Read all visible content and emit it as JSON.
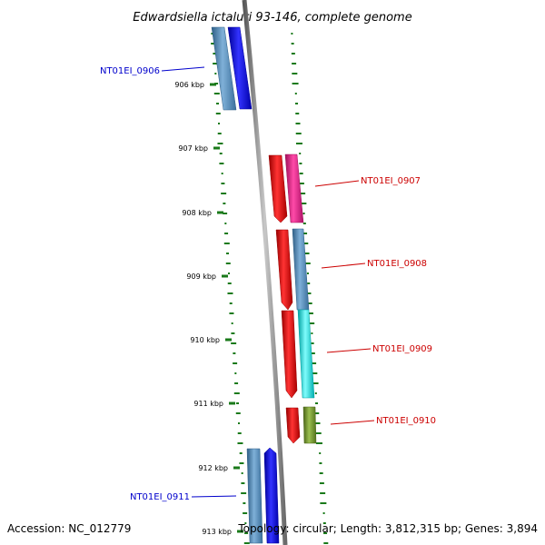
{
  "title": "Edwardsiella ictaluri 93-146, complete genome",
  "footer": {
    "accession": "Accession: NC_012779",
    "topology": "Topology: circular; Length: 3,812,315 bp; Genes: 3,894"
  },
  "ticks": [
    "906 kbp",
    "907 kbp",
    "908 kbp",
    "909 kbp",
    "910 kbp",
    "911 kbp",
    "912 kbp",
    "913 kbp"
  ],
  "genes": [
    {
      "label": "NT01EI_0906",
      "strand": "reverse",
      "color": "#0000cc"
    },
    {
      "label": "NT01EI_0907",
      "strand": "forward",
      "color": "#cc0000"
    },
    {
      "label": "NT01EI_0908",
      "strand": "forward",
      "color": "#cc0000"
    },
    {
      "label": "NT01EI_0909",
      "strand": "forward",
      "color": "#cc0000"
    },
    {
      "label": "NT01EI_0910",
      "strand": "forward",
      "color": "#cc0000"
    },
    {
      "label": "NT01EI_0911",
      "strand": "reverse",
      "color": "#0000cc"
    }
  ],
  "colors": {
    "backbone": "#808080",
    "gc_dots": "#1a7a1a",
    "reverse_cds": "#0000ff",
    "forward_cds": "#ff0000",
    "gene_steelblue": "#4682b4",
    "gene_magenta": "#ff1493",
    "gene_cyan": "#00e5e5",
    "gene_olive": "#6b8e23"
  }
}
